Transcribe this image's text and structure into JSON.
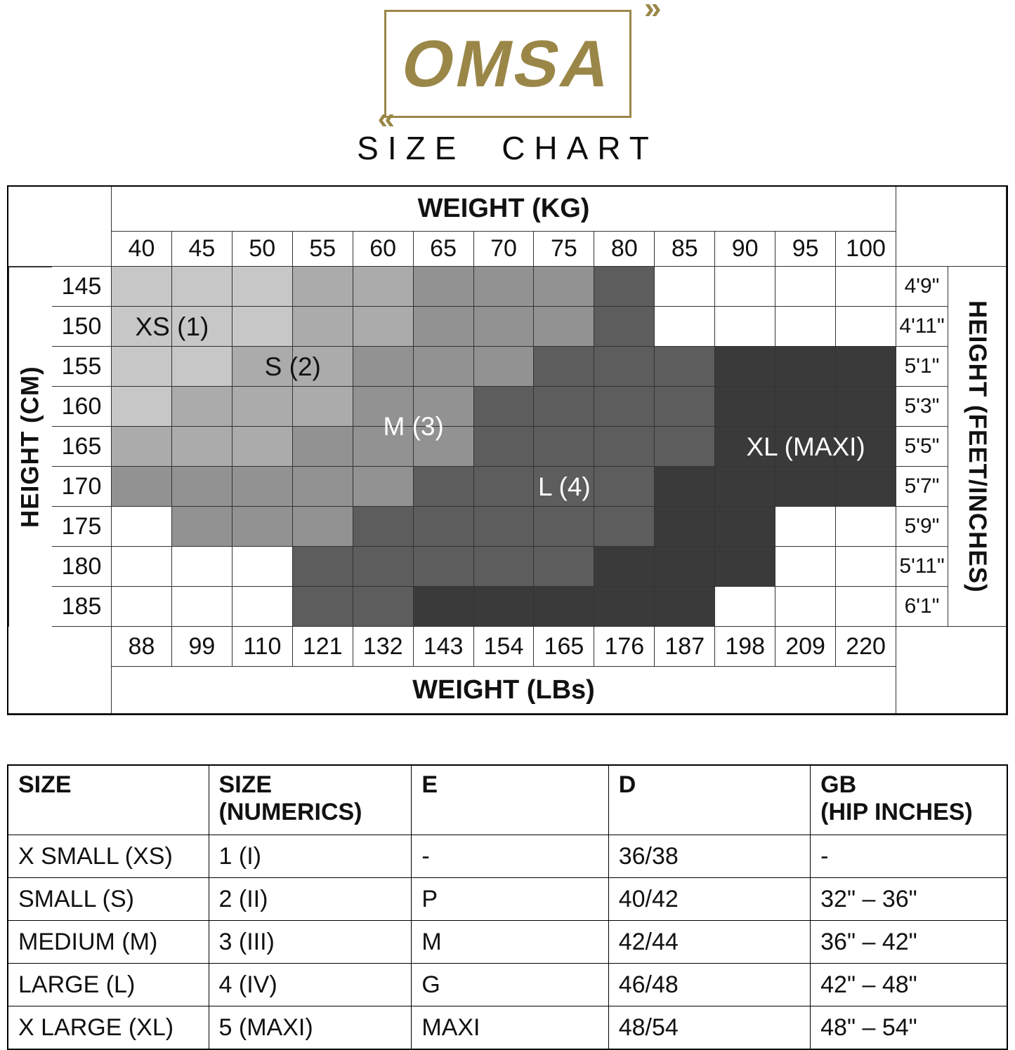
{
  "brand": {
    "logo_text": "OMSA",
    "logo_color": "#9a8748",
    "arrow_right": "»",
    "arrow_left": "«",
    "title": "SIZE CHART"
  },
  "size_grid": {
    "top_header": "WEIGHT (KG)",
    "bottom_header": "WEIGHT (LBs)",
    "left_label": "HEIGHT (CM)",
    "right_label": "HEIGHT (FEET/INCHES)",
    "weights_kg": [
      "40",
      "45",
      "50",
      "55",
      "60",
      "65",
      "70",
      "75",
      "80",
      "85",
      "90",
      "95",
      "100"
    ],
    "weights_lbs": [
      "88",
      "99",
      "110",
      "121",
      "132",
      "143",
      "154",
      "165",
      "176",
      "187",
      "198",
      "209",
      "220"
    ],
    "heights_cm": [
      "145",
      "150",
      "155",
      "160",
      "165",
      "170",
      "175",
      "180",
      "185"
    ],
    "heights_ftin": [
      "4'9\"",
      "4'11\"",
      "5'1\"",
      "5'3\"",
      "5'5\"",
      "5'7\"",
      "5'9\"",
      "5'11\"",
      "6'1\""
    ],
    "palette": {
      "XS": "#c7c7c7",
      "S": "#ababab",
      "M": "#929292",
      "L": "#5d5d5d",
      "XL": "#3a3a3a"
    },
    "cell_matrix": [
      [
        "XS",
        "XS",
        "XS",
        "S",
        "S",
        "M",
        "M",
        "M",
        "L",
        "",
        "",
        "",
        ""
      ],
      [
        "XS",
        "XS",
        "XS",
        "S",
        "S",
        "M",
        "M",
        "M",
        "L",
        "",
        "",
        "",
        ""
      ],
      [
        "XS",
        "XS",
        "S",
        "S",
        "M",
        "M",
        "M",
        "L",
        "L",
        "L",
        "XL",
        "XL",
        "XL"
      ],
      [
        "XS",
        "S",
        "S",
        "S",
        "M",
        "M",
        "L",
        "L",
        "L",
        "L",
        "XL",
        "XL",
        "XL"
      ],
      [
        "S",
        "S",
        "S",
        "M",
        "M",
        "M",
        "L",
        "L",
        "L",
        "L",
        "XL",
        "XL",
        "XL"
      ],
      [
        "M",
        "M",
        "M",
        "M",
        "M",
        "L",
        "L",
        "L",
        "L",
        "XL",
        "XL",
        "XL",
        "XL"
      ],
      [
        "",
        "M",
        "M",
        "M",
        "L",
        "L",
        "L",
        "L",
        "L",
        "XL",
        "XL",
        "",
        ""
      ],
      [
        "",
        "",
        "",
        "L",
        "L",
        "L",
        "L",
        "L",
        "XL",
        "XL",
        "XL",
        "",
        ""
      ],
      [
        "",
        "",
        "",
        "L",
        "L",
        "XL",
        "XL",
        "XL",
        "XL",
        "XL",
        "",
        "",
        ""
      ]
    ],
    "region_labels": [
      {
        "label": "XS (1)",
        "row": 1,
        "col": 0,
        "rowspan": 1,
        "colspan": 2,
        "text_color": "#111111"
      },
      {
        "label": "S (2)",
        "row": 2,
        "col": 2,
        "rowspan": 1,
        "colspan": 2,
        "text_color": "#111111"
      },
      {
        "label": "M (3)",
        "row": 3,
        "col": 4,
        "rowspan": 2,
        "colspan": 2,
        "text_color": "#ffffff"
      },
      {
        "label": "L (4)",
        "row": 5,
        "col": 7,
        "rowspan": 1,
        "colspan": 1,
        "text_color": "#ffffff"
      },
      {
        "label": "XL (MAXI)",
        "row": 4,
        "col": 10,
        "rowspan": 1,
        "colspan": 3,
        "text_color": "#ffffff"
      }
    ]
  },
  "conversion_table": {
    "headers": [
      "SIZE",
      "SIZE\n(NUMERICS)",
      "E",
      "D",
      "GB\n(HIP INCHES)"
    ],
    "rows": [
      [
        "X SMALL (XS)",
        "1 (I)",
        "-",
        "36/38",
        "-"
      ],
      [
        "SMALL (S)",
        "2 (II)",
        "P",
        "40/42",
        "32\" – 36\""
      ],
      [
        "MEDIUM (M)",
        "3 (III)",
        "M",
        "42/44",
        "36\" – 42\""
      ],
      [
        "LARGE (L)",
        "4 (IV)",
        "G",
        "46/48",
        "42\" – 48\""
      ],
      [
        "X LARGE (XL)",
        "5 (MAXI)",
        "MAXI",
        "48/54",
        "48\" – 54\""
      ]
    ]
  },
  "chart_data": {
    "type": "heatmap",
    "title": "OMSA SIZE CHART",
    "x_top": {
      "label": "WEIGHT (KG)",
      "values": [
        40,
        45,
        50,
        55,
        60,
        65,
        70,
        75,
        80,
        85,
        90,
        95,
        100
      ]
    },
    "x_bottom": {
      "label": "WEIGHT (LBs)",
      "values": [
        88,
        99,
        110,
        121,
        132,
        143,
        154,
        165,
        176,
        187,
        198,
        209,
        220
      ]
    },
    "y_left": {
      "label": "HEIGHT (CM)",
      "values": [
        145,
        150,
        155,
        160,
        165,
        170,
        175,
        180,
        185
      ]
    },
    "y_right": {
      "label": "HEIGHT (FEET/INCHES)",
      "values": [
        "4'9\"",
        "4'11\"",
        "5'1\"",
        "5'3\"",
        "5'5\"",
        "5'7\"",
        "5'9\"",
        "5'11\"",
        "6'1\""
      ]
    },
    "legend": [
      {
        "size": "XS (1)",
        "color": "#c7c7c7"
      },
      {
        "size": "S (2)",
        "color": "#ababab"
      },
      {
        "size": "M (3)",
        "color": "#929292"
      },
      {
        "size": "L (4)",
        "color": "#5d5d5d"
      },
      {
        "size": "XL (MAXI)",
        "color": "#3a3a3a"
      }
    ],
    "cells_by_height_row": [
      {
        "height_cm": 145,
        "sizes": [
          "XS",
          "XS",
          "XS",
          "S",
          "S",
          "M",
          "M",
          "M",
          "L",
          "",
          "",
          "",
          ""
        ]
      },
      {
        "height_cm": 150,
        "sizes": [
          "XS",
          "XS",
          "XS",
          "S",
          "S",
          "M",
          "M",
          "M",
          "L",
          "",
          "",
          "",
          ""
        ]
      },
      {
        "height_cm": 155,
        "sizes": [
          "XS",
          "XS",
          "S",
          "S",
          "M",
          "M",
          "M",
          "L",
          "L",
          "L",
          "XL",
          "XL",
          "XL"
        ]
      },
      {
        "height_cm": 160,
        "sizes": [
          "XS",
          "S",
          "S",
          "S",
          "M",
          "M",
          "L",
          "L",
          "L",
          "L",
          "XL",
          "XL",
          "XL"
        ]
      },
      {
        "height_cm": 165,
        "sizes": [
          "S",
          "S",
          "S",
          "M",
          "M",
          "M",
          "L",
          "L",
          "L",
          "L",
          "XL",
          "XL",
          "XL"
        ]
      },
      {
        "height_cm": 170,
        "sizes": [
          "M",
          "M",
          "M",
          "M",
          "M",
          "L",
          "L",
          "L",
          "L",
          "XL",
          "XL",
          "XL",
          "XL"
        ]
      },
      {
        "height_cm": 175,
        "sizes": [
          "",
          "M",
          "M",
          "M",
          "L",
          "L",
          "L",
          "L",
          "L",
          "XL",
          "XL",
          "",
          ""
        ]
      },
      {
        "height_cm": 180,
        "sizes": [
          "",
          "",
          "",
          "L",
          "L",
          "L",
          "L",
          "L",
          "XL",
          "XL",
          "XL",
          "",
          ""
        ]
      },
      {
        "height_cm": 185,
        "sizes": [
          "",
          "",
          "",
          "L",
          "L",
          "XL",
          "XL",
          "XL",
          "XL",
          "XL",
          "",
          "",
          ""
        ]
      }
    ]
  }
}
